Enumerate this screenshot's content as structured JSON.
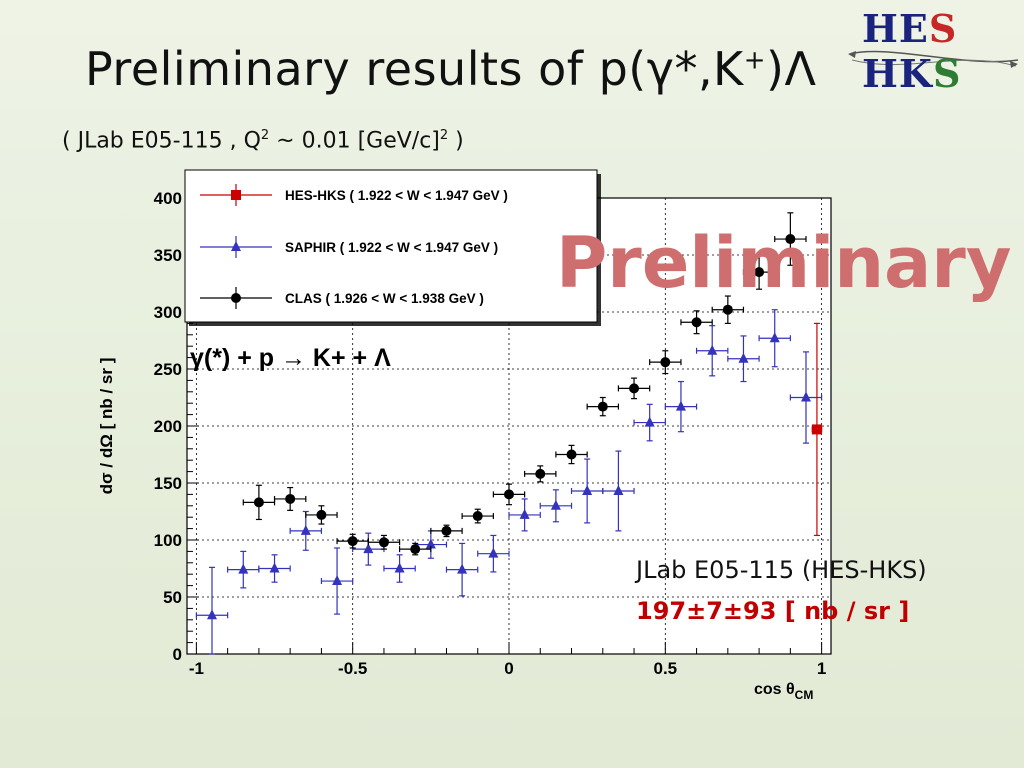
{
  "slide": {
    "title_main": "Preliminary results of p(γ*,K",
    "title_sup": "+",
    "title_end": ")Λ",
    "subtitle_pre": "( JLab E05-115 , Q",
    "subtitle_sup1": "2",
    "subtitle_mid": " ~ 0.01 [GeV/c]",
    "subtitle_sup2": "2",
    "subtitle_end": " )",
    "logo_part1": "HE",
    "logo_part2": "S",
    "logo_part3": " HK",
    "logo_part4": "S",
    "preliminary_stamp": "Preliminary",
    "result_label": "JLab E05-115 (HES-HKS)",
    "result_value": "197±7±93 [ nb / sr ]"
  },
  "colors": {
    "hes_hks": "#cc0000",
    "saphir": "#3333bb",
    "clas": "#000000",
    "preliminary": "#cf6e6e"
  },
  "chart_data": {
    "type": "scatter",
    "xlabel_main": "cos θ",
    "xlabel_sub": "CM",
    "ylabel": "dσ / dΩ  [ nb / sr ]",
    "xlim": [
      -1.03,
      1.03
    ],
    "ylim": [
      0,
      400
    ],
    "x_ticks": [
      -1,
      -0.5,
      0,
      0.5,
      1
    ],
    "x_tick_labels": [
      "-1",
      "-0.5",
      "0",
      "0.5",
      "1"
    ],
    "y_ticks": [
      0,
      50,
      100,
      150,
      200,
      250,
      300,
      350,
      400
    ],
    "y_tick_labels": [
      "0",
      "50",
      "100",
      "150",
      "200",
      "250",
      "300",
      "350",
      "400"
    ],
    "grid": true,
    "reaction_label": "γ(*) + p → K+ + Λ",
    "legend_entries": [
      "HES-HKS ( 1.922 < W < 1.947 GeV )",
      "SAPHIR ( 1.922 < W < 1.947 GeV )",
      "CLAS ( 1.926 < W < 1.938 GeV )"
    ],
    "series": [
      {
        "name": "HES-HKS ( 1.922 < W < 1.947 GeV )",
        "marker": "square",
        "color": "#cc0000",
        "x": [
          0.985
        ],
        "y": [
          197
        ],
        "yerr": [
          93
        ],
        "xerr": [
          0.015
        ]
      },
      {
        "name": "SAPHIR ( 1.922 < W < 1.947 GeV )",
        "marker": "triangle",
        "color": "#3333bb",
        "x": [
          -0.95,
          -0.85,
          -0.75,
          -0.65,
          -0.55,
          -0.45,
          -0.35,
          -0.25,
          -0.15,
          -0.05,
          0.05,
          0.15,
          0.25,
          0.35,
          0.45,
          0.55,
          0.65,
          0.75,
          0.85,
          0.95
        ],
        "y": [
          34,
          74,
          75,
          108,
          64,
          92,
          75,
          96,
          74,
          88,
          122,
          130,
          143,
          143,
          203,
          217,
          266,
          259,
          277,
          225
        ],
        "yerr": [
          42,
          16,
          12,
          17,
          29,
          14,
          12,
          12,
          23,
          16,
          14,
          14,
          28,
          35,
          16,
          22,
          22,
          20,
          25,
          40
        ],
        "xerr": [
          0.05,
          0.05,
          0.05,
          0.05,
          0.05,
          0.05,
          0.05,
          0.05,
          0.05,
          0.05,
          0.05,
          0.05,
          0.05,
          0.05,
          0.05,
          0.05,
          0.05,
          0.05,
          0.05,
          0.05
        ]
      },
      {
        "name": "CLAS ( 1.926 < W < 1.938 GeV )",
        "marker": "circle",
        "color": "#000000",
        "x": [
          -0.8,
          -0.7,
          -0.6,
          -0.5,
          -0.4,
          -0.3,
          -0.2,
          -0.1,
          0.0,
          0.1,
          0.2,
          0.3,
          0.4,
          0.5,
          0.6,
          0.7,
          0.8,
          0.9
        ],
        "y": [
          133,
          136,
          122,
          99,
          98,
          92,
          108,
          121,
          140,
          158,
          175,
          217,
          233,
          256,
          291,
          302,
          335,
          364
        ],
        "yerr": [
          15,
          10,
          8,
          6,
          6,
          5,
          5,
          6,
          9,
          7,
          8,
          8,
          9,
          10,
          10,
          12,
          15,
          23
        ],
        "xerr": [
          0.05,
          0.05,
          0.05,
          0.05,
          0.05,
          0.05,
          0.05,
          0.05,
          0.05,
          0.05,
          0.05,
          0.05,
          0.05,
          0.05,
          0.05,
          0.05,
          0.05,
          0.05
        ]
      }
    ]
  }
}
